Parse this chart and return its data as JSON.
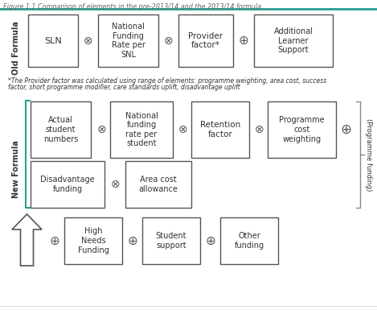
{
  "title": "Figure 1.1 Comparison of elements in the pre-2013/14 and the 2013/14 formula",
  "title_color": "#666666",
  "title_fontsize": 5.8,
  "bg_color": "#ffffff",
  "teal_color": "#2a9d8f",
  "box_edge_color": "#555555",
  "text_color": "#333333",
  "footnote_line1": "*The Provider factor was calculated using range of elements: programme weighting, area cost, success",
  "footnote_line2": "factor, short programme modifier, care standards uplift, disadvantage uplift",
  "old_label": "Old Formula",
  "new_label": "New Formula",
  "programme_label": "(Programme funding)"
}
